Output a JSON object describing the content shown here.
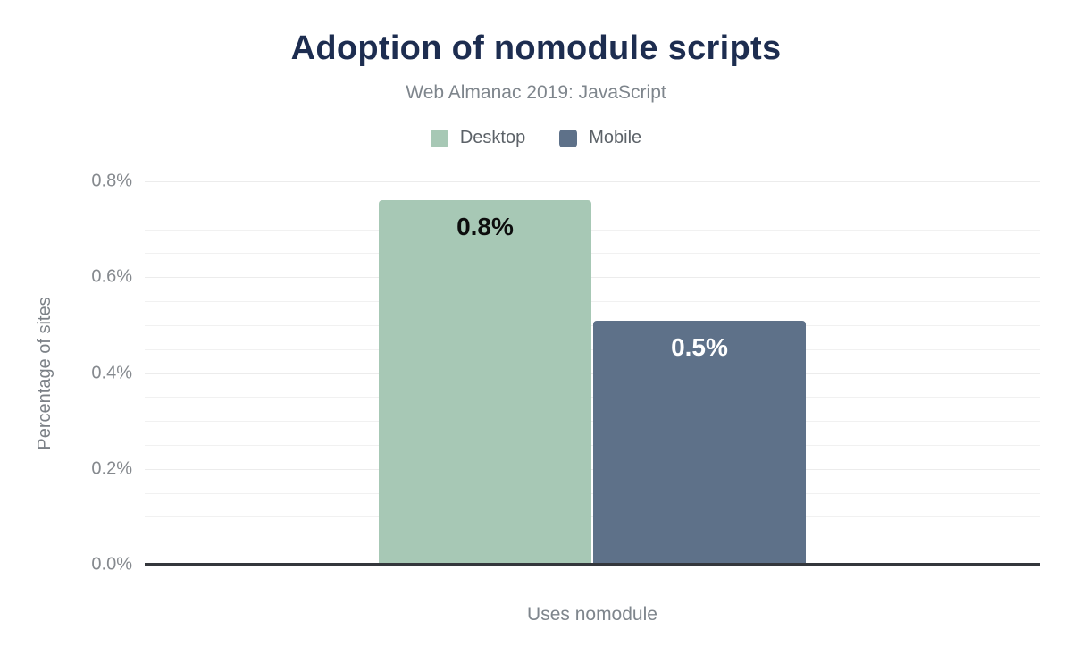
{
  "chart_data": {
    "type": "bar",
    "title": "Adoption of nomodule scripts",
    "subtitle": "Web Almanac 2019: JavaScript",
    "xlabel": "Uses nomodule",
    "ylabel": "Percentage of sites",
    "categories": [
      "Uses nomodule"
    ],
    "series": [
      {
        "name": "Desktop",
        "values": [
          0.76
        ],
        "data_label": "0.8%",
        "color": "#a7c8b5",
        "data_label_color": "#0d0d0d"
      },
      {
        "name": "Mobile",
        "values": [
          0.51
        ],
        "data_label": "0.5%",
        "color": "#5e7189",
        "data_label_color": "#ffffff"
      }
    ],
    "ylim": [
      0,
      0.8
    ],
    "ytick_values": [
      0,
      0.2,
      0.4,
      0.6,
      0.8
    ],
    "ytick_labels": [
      "0.0%",
      "0.2%",
      "0.4%",
      "0.6%",
      "0.8%"
    ],
    "minor_gridline_step": 0.05,
    "grid": "on",
    "legend_position": "top-center"
  },
  "colors": {
    "title_text": "#1d2d50",
    "subtitle_text": "#7e858c",
    "axis_text": "#85898e",
    "legend_text": "#5c6268",
    "gridline": "#f1f1f1",
    "axis_line": "#34373c"
  }
}
